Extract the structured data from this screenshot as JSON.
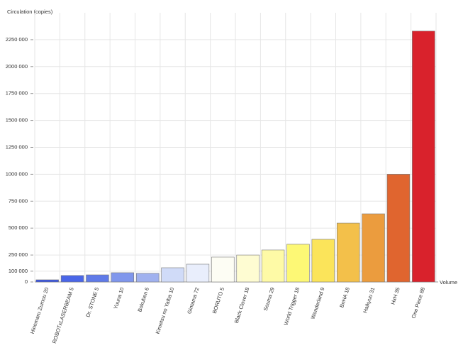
{
  "chart_data": {
    "type": "bar",
    "y_label": "Circulation (copies)",
    "x_label": "Volume",
    "categories": [
      "Hinomaru Zumou 20",
      "ROBOTxLASERBEAM 5",
      "Dr. STONE 5",
      "Yuuna 10",
      "Bokuben 6",
      "Kimetsu no Yaiba 10",
      "Gintama 72",
      "BORUTO 5",
      "Black Clover 18",
      "Souma 29",
      "World Trigger 18",
      "Wonderland 9",
      "BnHA 18",
      "Haikyuu 31",
      "HxH 35",
      "One Piece 88"
    ],
    "values": [
      20000,
      60000,
      66000,
      86000,
      80000,
      132000,
      165000,
      231000,
      250000,
      297000,
      350000,
      396000,
      547000,
      633000,
      1000000,
      2330000
    ],
    "colors": [
      "#3a55e0",
      "#4a66e8",
      "#5f7ae8",
      "#7f96ec",
      "#a0b1ef",
      "#d0dbf8",
      "#e9eefc",
      "#fdfdf4",
      "#fefcd2",
      "#fefaa6",
      "#fdf875",
      "#fbe45a",
      "#f3c04a",
      "#eb9c3e",
      "#e0652f",
      "#d9222c"
    ],
    "ylim": [
      0,
      2500000
    ],
    "yticks": [
      0,
      {
        "value": 100000,
        "label": "100 000"
      },
      {
        "value": 250000,
        "label": "250 000"
      },
      {
        "value": 500000,
        "label": "500 000"
      },
      {
        "value": 750000,
        "label": "750 000"
      },
      {
        "value": 1000000,
        "label": "1000 000"
      },
      {
        "value": 1250000,
        "label": "1250 000"
      },
      {
        "value": 1500000,
        "label": "1500 000"
      },
      {
        "value": 1750000,
        "label": "1750 000"
      },
      {
        "value": 2000000,
        "label": "2000 000"
      },
      {
        "value": 2250000,
        "label": "2250 000"
      }
    ],
    "grid": true
  }
}
